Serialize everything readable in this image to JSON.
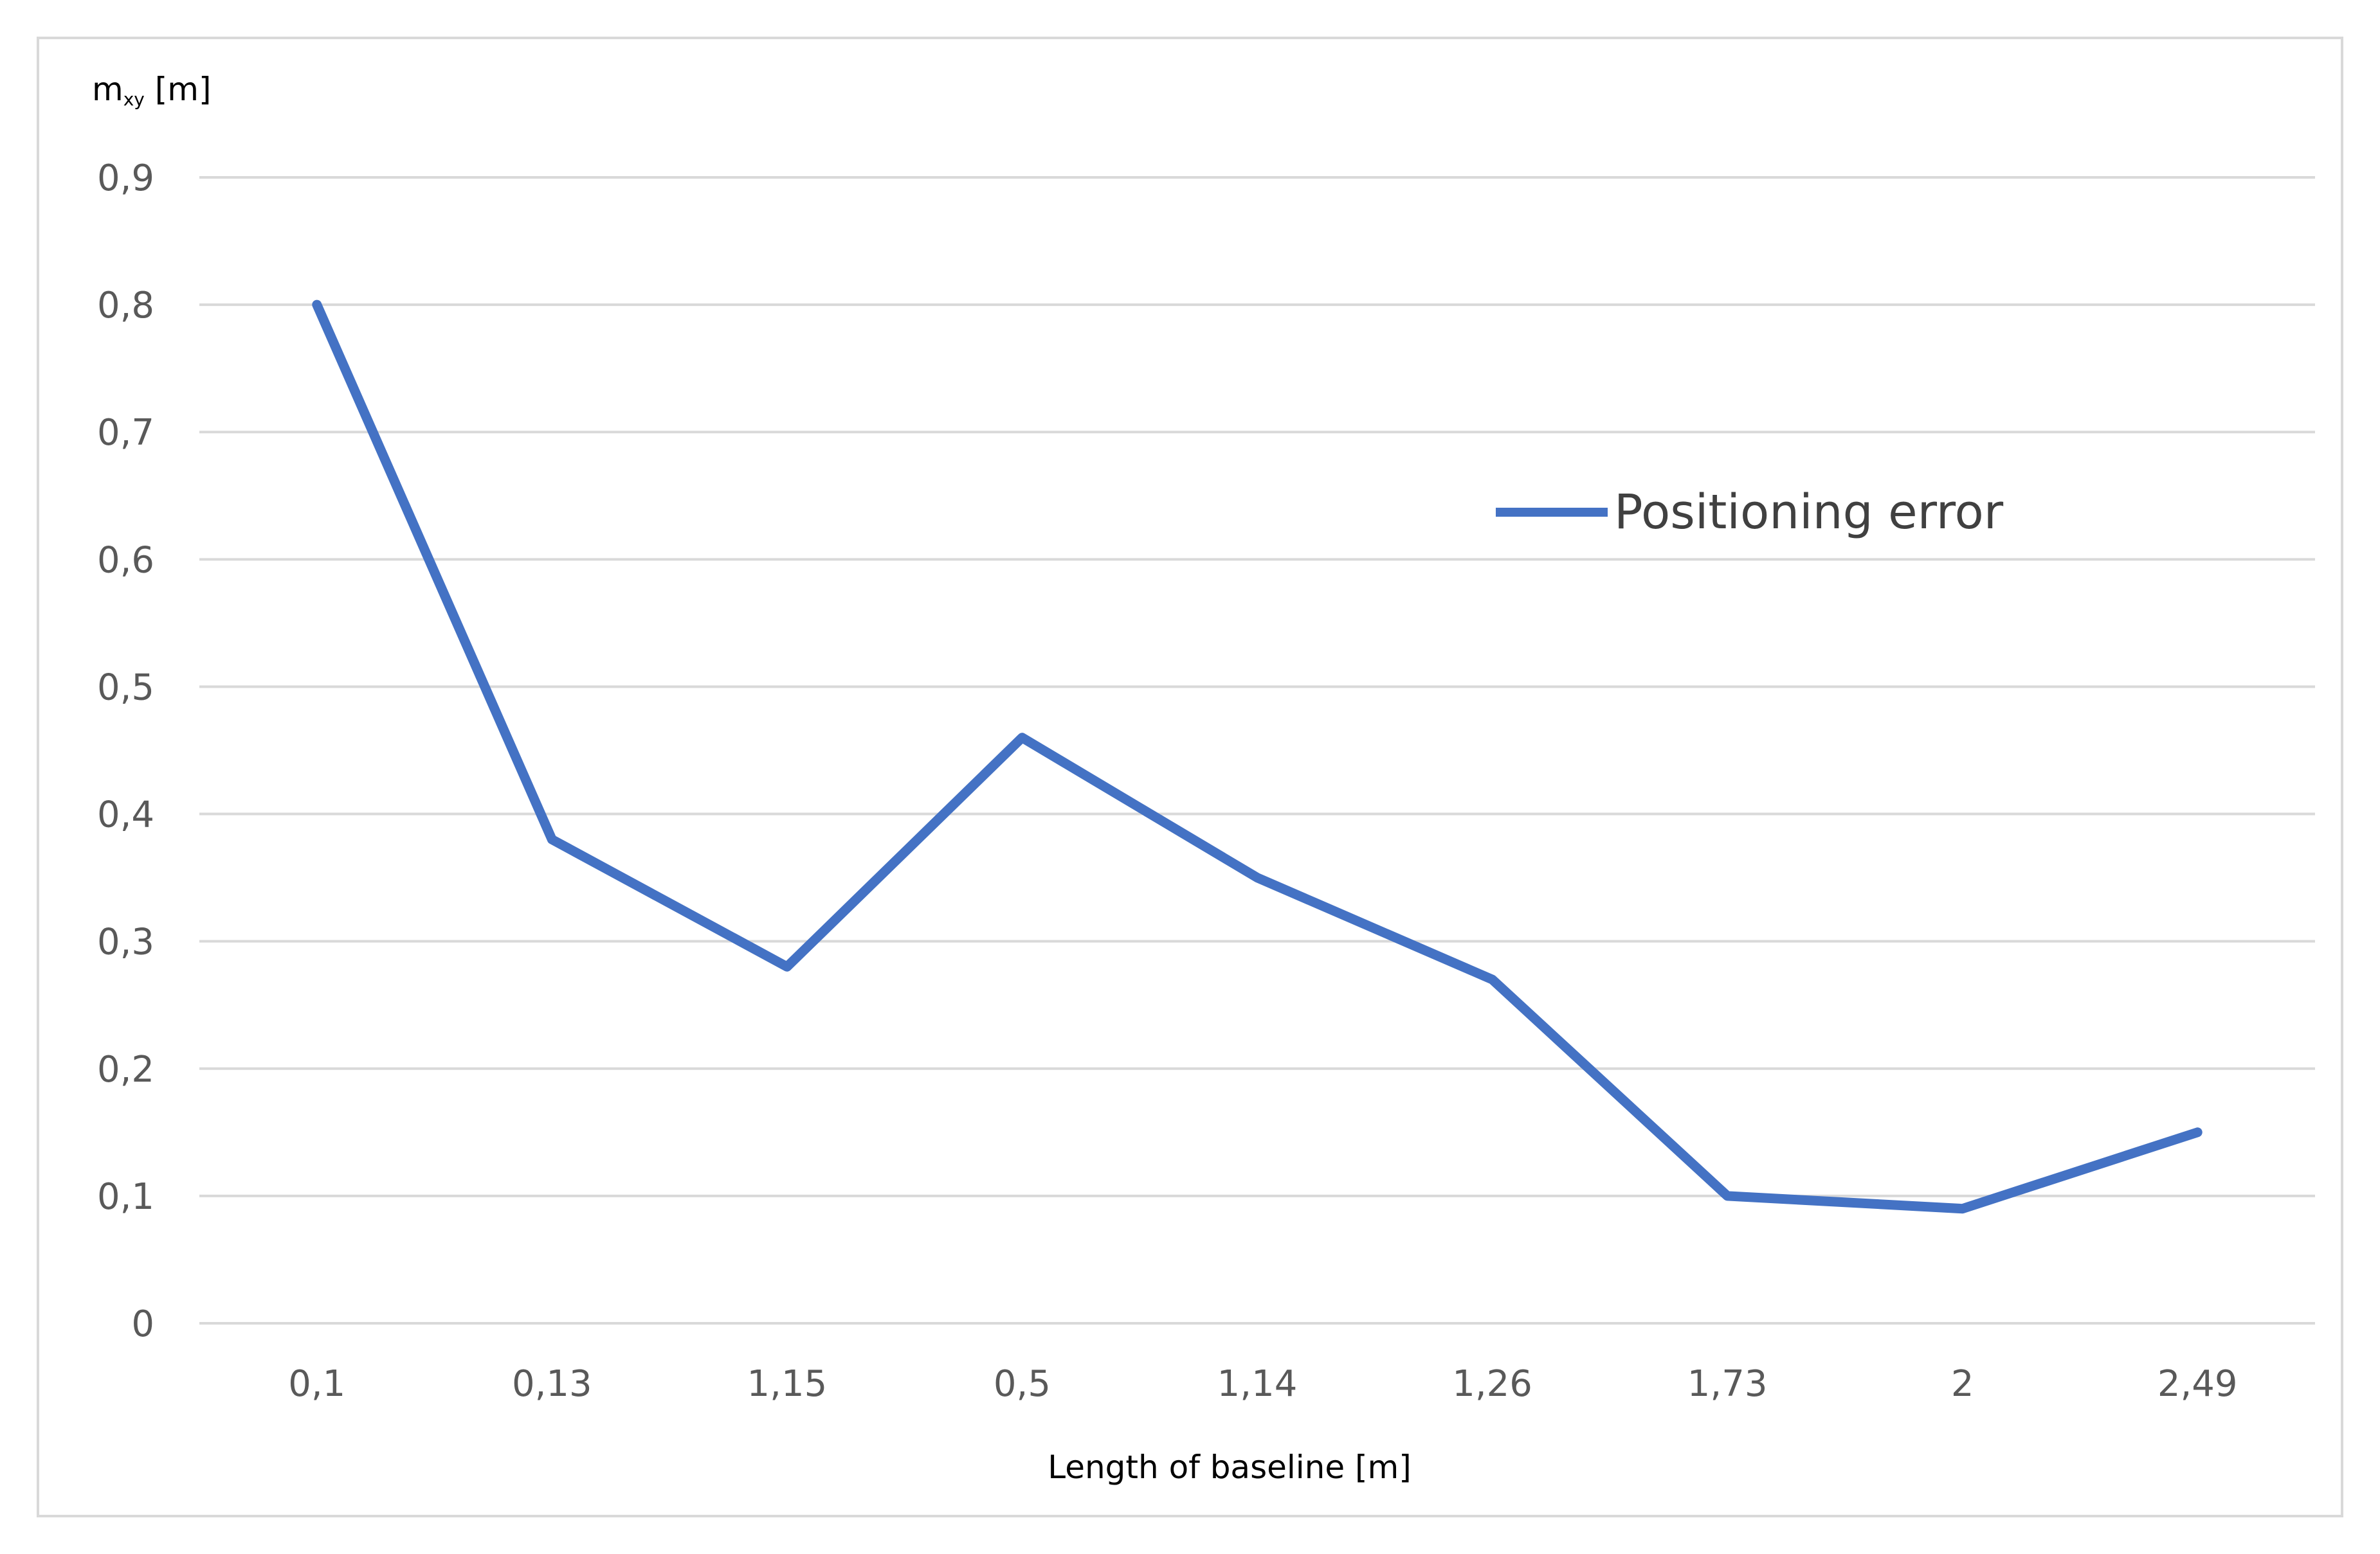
{
  "chart_data": {
    "type": "line",
    "categories": [
      "0,1",
      "0,13",
      "1,15",
      "0,5",
      "1,14",
      "1,26",
      "1,73",
      "2",
      "2,49"
    ],
    "series": [
      {
        "name": "Positioning error",
        "values": [
          0.8,
          0.38,
          0.28,
          0.46,
          0.35,
          0.27,
          0.1,
          0.09,
          0.15
        ]
      }
    ],
    "title": "",
    "xlabel": "Length of baseline [m]",
    "ylabel": "m",
    "ylabel_subscript": "xy",
    "ylabel_unit": " [m]",
    "ylim": [
      0,
      0.9
    ],
    "yticks": [
      "0",
      "0,1",
      "0,2",
      "0,3",
      "0,4",
      "0,5",
      "0,6",
      "0,7",
      "0,8",
      "0,9"
    ],
    "grid": true,
    "legend_position": "right, inside plot area",
    "colors": {
      "series": "#4472c4",
      "grid": "#d9d9d9",
      "tick_text": "#595959"
    }
  }
}
